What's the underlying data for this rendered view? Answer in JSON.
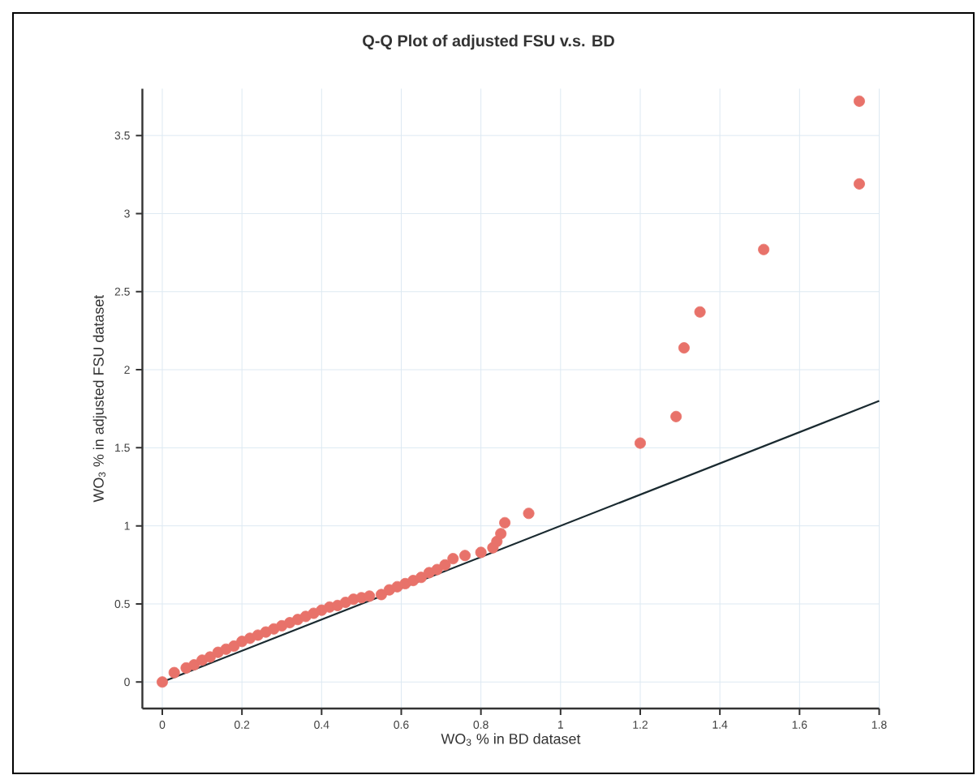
{
  "chart_data": {
    "type": "scatter",
    "title": "Q-Q Plot of adjusted FSU v.s. BD",
    "xlabel": "WO$_{3}$ % in BD dataset",
    "ylabel": "WO$_{3}$ % in adjusted FSU dataset",
    "xlim": [
      -0.05,
      1.8
    ],
    "ylim": [
      -0.17,
      3.8
    ],
    "xticks": [
      0,
      0.2,
      0.4,
      0.6,
      0.8,
      1,
      1.2,
      1.4,
      1.6,
      1.8
    ],
    "yticks": [
      0,
      0.5,
      1,
      1.5,
      2,
      2.5,
      3,
      3.5
    ],
    "grid": true,
    "marker": "circle",
    "series": [
      {
        "color": "#e8726a",
        "x": [
          0,
          0.03,
          0.06,
          0.08,
          0.1,
          0.12,
          0.14,
          0.16,
          0.18,
          0.2,
          0.22,
          0.24,
          0.26,
          0.28,
          0.3,
          0.32,
          0.34,
          0.36,
          0.38,
          0.4,
          0.42,
          0.44,
          0.46,
          0.48,
          0.5,
          0.52,
          0.55,
          0.57,
          0.59,
          0.61,
          0.63,
          0.65,
          0.67,
          0.69,
          0.71,
          0.73,
          0.76,
          0.8,
          0.83,
          0.84,
          0.85,
          0.86,
          0.92,
          1.2,
          1.29,
          1.31,
          1.35,
          1.51,
          1.75,
          1.75
        ],
        "values": [
          0.0,
          0.06,
          0.09,
          0.11,
          0.14,
          0.16,
          0.19,
          0.21,
          0.23,
          0.26,
          0.28,
          0.3,
          0.32,
          0.34,
          0.36,
          0.38,
          0.4,
          0.42,
          0.44,
          0.46,
          0.48,
          0.49,
          0.51,
          0.53,
          0.54,
          0.55,
          0.56,
          0.59,
          0.61,
          0.63,
          0.65,
          0.67,
          0.7,
          0.72,
          0.75,
          0.79,
          0.81,
          0.83,
          0.86,
          0.9,
          0.95,
          1.02,
          1.08,
          1.53,
          1.7,
          2.14,
          2.37,
          2.77,
          3.19,
          3.72
        ]
      },
      {
        "type": "line",
        "color": "#1a2a30",
        "marker": "none",
        "x": [
          0,
          1.8
        ],
        "values": [
          0,
          1.8
        ]
      }
    ]
  }
}
